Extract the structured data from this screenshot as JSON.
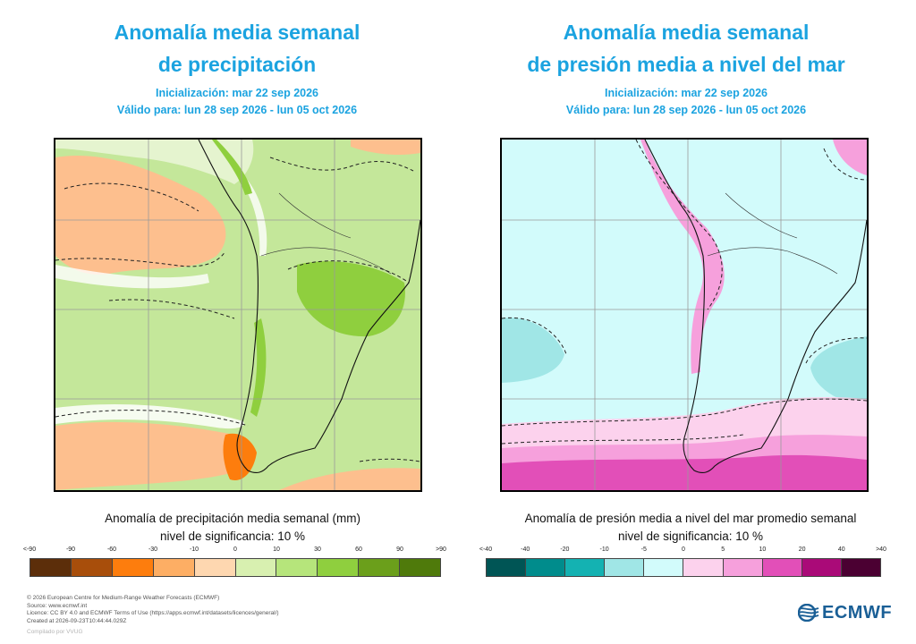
{
  "left": {
    "title_line1": "Anomalía media semanal",
    "title_line2": "de precipitación",
    "init": "Inicialización: mar 22 sep 2026",
    "valid": "Válido para: lun 28 sep 2026 - lun 05 oct 2026",
    "caption_line1": "Anomalía de precipitación media semanal (mm)",
    "caption_line2": "nivel de significancia: 10 %",
    "ticks": [
      "<-90",
      "-90",
      "-60",
      "-30",
      "-10",
      "0",
      "10",
      "30",
      "60",
      "90",
      ">90"
    ],
    "colors": [
      "#5c2e0a",
      "#a84e0b",
      "#fd7d0d",
      "#fdae64",
      "#fed7b0",
      "#d8f0b0",
      "#b6e57b",
      "#8fcf3e",
      "#6b9f1b",
      "#4f7a0b"
    ]
  },
  "right": {
    "title_line1": "Anomalía media semanal",
    "title_line2": "de presión media a nivel del mar",
    "init": "Inicialización: mar 22 sep 2026",
    "valid": "Válido para: lun 28 sep 2026 - lun 05 oct 2026",
    "caption_line1": "Anomalía de presión media a nivel del mar promedio semanal",
    "caption_line2": "nivel de significancia: 10 %",
    "ticks": [
      "<-40",
      "-40",
      "-20",
      "-10",
      "-5",
      "0",
      "5",
      "10",
      "20",
      "40",
      ">40"
    ],
    "colors": [
      "#005555",
      "#008c8c",
      "#14b2b2",
      "#a0e6e6",
      "#d2fbfb",
      "#fcd2ed",
      "#f6a0dc",
      "#e24fb8",
      "#aa0a78",
      "#4b0032"
    ]
  },
  "footer": {
    "copyright": "© 2026 European Centre for Medium-Range Weather Forecasts (ECMWF)",
    "source": "Source: www.ecmwf.int",
    "licence": "Licence: CC BY 4.0 and ECMWF Terms of Use (https://apps.ecmwf.int/datasets/licences/general/)",
    "created": "Created at 2026-09-23T10:44:44.029Z",
    "compiled": "Compilado por VVUG"
  },
  "logo": {
    "text": "ECMWF",
    "icon": "ecmwf-logo-icon",
    "color": "#1a5f96"
  }
}
